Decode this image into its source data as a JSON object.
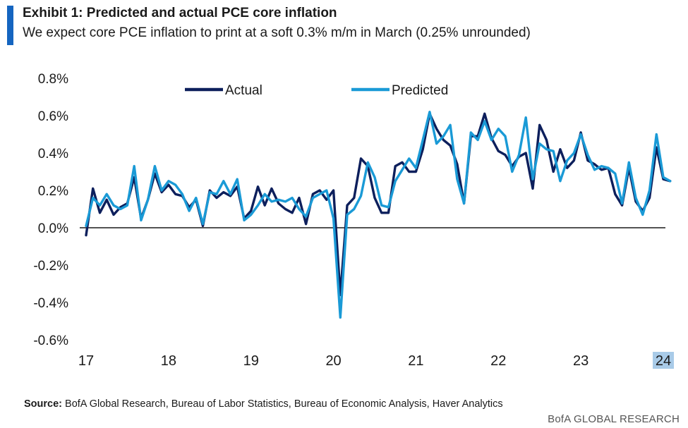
{
  "header": {
    "title": "Exhibit 1: Predicted and actual PCE core inflation",
    "subtitle": "We expect core PCE inflation to print at a soft 0.3% m/m in March (0.25% unrounded)"
  },
  "footer": {
    "source_label": "Source:",
    "source_text": " BofA Global Research, Bureau of Labor Statistics, Bureau of Economic Analysis, Haver Analytics",
    "brand": "BofA GLOBAL RESEARCH"
  },
  "colors": {
    "actual": "#0d1f5c",
    "predicted": "#1a9ad6",
    "accent": "#1565c0",
    "highlight": "#a9cbe8"
  },
  "chart_data": {
    "type": "line",
    "title": "",
    "xlabel": "",
    "ylabel": "",
    "ylim": [
      -0.6,
      0.8
    ],
    "ytick_labels": [
      "0.8%",
      "0.6%",
      "0.4%",
      "0.2%",
      "0.0%",
      "-0.2%",
      "-0.4%",
      "-0.6%"
    ],
    "ytick_values": [
      0.8,
      0.6,
      0.4,
      0.2,
      0.0,
      -0.2,
      -0.4,
      -0.6
    ],
    "xtick_labels": [
      "17",
      "18",
      "19",
      "20",
      "21",
      "22",
      "23",
      "24"
    ],
    "highlighted_xtick": "24",
    "x_start": "2017-01",
    "legend": "top",
    "grid": false,
    "zero_line": true,
    "series": [
      {
        "name": "Actual",
        "values": [
          -0.04,
          0.21,
          0.08,
          0.15,
          0.07,
          0.11,
          0.13,
          0.27,
          0.05,
          0.15,
          0.29,
          0.19,
          0.23,
          0.18,
          0.17,
          0.11,
          0.15,
          0.01,
          0.2,
          0.16,
          0.19,
          0.17,
          0.22,
          0.05,
          0.09,
          0.22,
          0.12,
          0.21,
          0.13,
          0.1,
          0.08,
          0.16,
          0.02,
          0.18,
          0.2,
          0.15,
          0.2,
          -0.36,
          0.12,
          0.16,
          0.37,
          0.33,
          0.16,
          0.08,
          0.08,
          0.33,
          0.35,
          0.3,
          0.3,
          0.42,
          0.61,
          0.53,
          0.47,
          0.44,
          0.34,
          0.13,
          0.49,
          0.49,
          0.61,
          0.48,
          0.41,
          0.39,
          0.33,
          0.38,
          0.4,
          0.21,
          0.55,
          0.47,
          0.3,
          0.42,
          0.32,
          0.36,
          0.51,
          0.36,
          0.34,
          0.31,
          0.32,
          0.18,
          0.12,
          0.32,
          0.14,
          0.09,
          0.16,
          0.43,
          0.26,
          0.25
        ]
      },
      {
        "name": "Predicted",
        "values": [
          0.01,
          0.16,
          0.12,
          0.18,
          0.12,
          0.1,
          0.12,
          0.33,
          0.04,
          0.15,
          0.33,
          0.2,
          0.25,
          0.23,
          0.18,
          0.09,
          0.16,
          0.02,
          0.19,
          0.18,
          0.25,
          0.18,
          0.26,
          0.04,
          0.07,
          0.12,
          0.18,
          0.14,
          0.15,
          0.14,
          0.16,
          0.1,
          0.06,
          0.16,
          0.18,
          0.2,
          0.05,
          -0.48,
          0.07,
          0.1,
          0.17,
          0.35,
          0.27,
          0.12,
          0.11,
          0.25,
          0.31,
          0.37,
          0.32,
          0.47,
          0.62,
          0.45,
          0.49,
          0.55,
          0.26,
          0.13,
          0.51,
          0.47,
          0.57,
          0.47,
          0.53,
          0.49,
          0.3,
          0.39,
          0.59,
          0.26,
          0.45,
          0.42,
          0.41,
          0.25,
          0.36,
          0.4,
          0.5,
          0.39,
          0.31,
          0.33,
          0.32,
          0.29,
          0.13,
          0.35,
          0.16,
          0.07,
          0.2,
          0.5,
          0.27,
          0.25
        ]
      }
    ]
  }
}
